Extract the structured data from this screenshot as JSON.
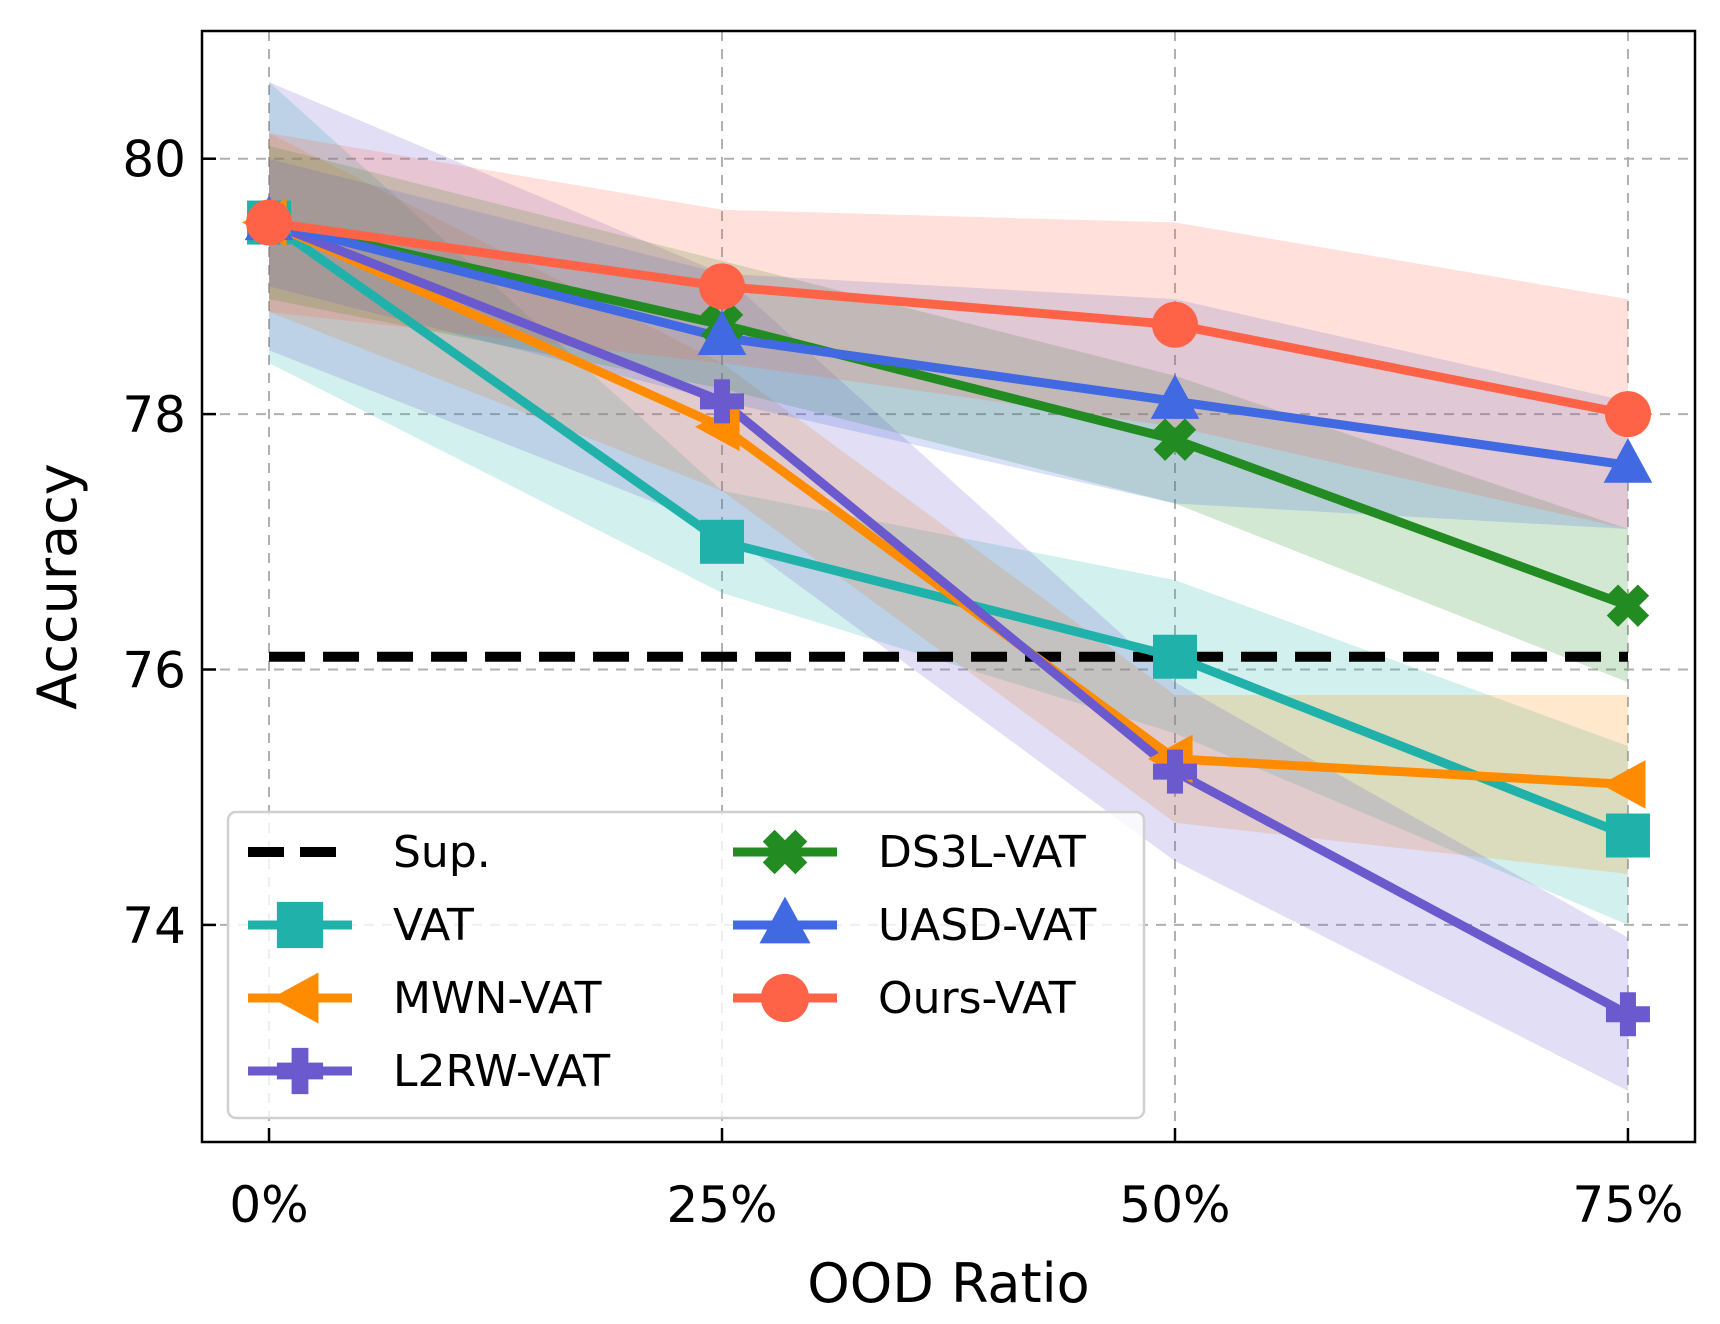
{
  "chart_data": {
    "type": "line",
    "title": "",
    "xlabel": "OOD Ratio",
    "ylabel": "Accuracy",
    "categories": [
      "0%",
      "25%",
      "50%",
      "75%"
    ],
    "x": [
      0,
      25,
      50,
      75
    ],
    "xlim": [
      -3.7,
      78.7
    ],
    "ylim": [
      72.3,
      81.0
    ],
    "yticks": [
      74,
      76,
      78,
      80
    ],
    "ytick_labels": [
      "74",
      "76",
      "78",
      "80"
    ],
    "grid": true,
    "legend_position": "lower-left",
    "legend_columns": 2,
    "series": [
      {
        "name": "Sup.",
        "style": "dashed",
        "marker": "none",
        "color": "#000000",
        "values": [
          76.1,
          76.1,
          76.1,
          76.1
        ]
      },
      {
        "name": "VAT",
        "style": "solid",
        "marker": "square",
        "color": "#20b2aa",
        "values": [
          79.5,
          77.0,
          76.1,
          74.7
        ],
        "band_lower": [
          78.4,
          76.6,
          75.5,
          74.0
        ],
        "band_upper": [
          80.6,
          77.4,
          76.7,
          75.4
        ]
      },
      {
        "name": "MWN-VAT",
        "style": "solid",
        "marker": "triangle-left",
        "color": "#ff8c00",
        "values": [
          79.5,
          77.9,
          75.3,
          75.1
        ],
        "band_lower": [
          78.8,
          77.4,
          74.8,
          74.4
        ],
        "band_upper": [
          80.2,
          78.4,
          75.8,
          75.8
        ]
      },
      {
        "name": "L2RW-VAT",
        "style": "solid",
        "marker": "plus",
        "color": "#6a5acd",
        "values": [
          79.5,
          78.1,
          75.2,
          73.3
        ],
        "band_lower": [
          78.5,
          77.1,
          74.5,
          72.7
        ],
        "band_upper": [
          80.6,
          79.1,
          75.9,
          73.9
        ]
      },
      {
        "name": "DS3L-VAT",
        "style": "solid",
        "marker": "x-filled",
        "color": "#228b22",
        "values": [
          79.5,
          78.7,
          77.8,
          76.5
        ],
        "band_lower": [
          78.9,
          78.2,
          77.3,
          75.9
        ],
        "band_upper": [
          80.1,
          79.2,
          78.3,
          77.1
        ]
      },
      {
        "name": "UASD-VAT",
        "style": "solid",
        "marker": "triangle-up",
        "color": "#4169e1",
        "values": [
          79.5,
          78.6,
          78.1,
          77.6
        ],
        "band_lower": [
          79.0,
          78.1,
          77.3,
          77.1
        ],
        "band_upper": [
          80.0,
          79.1,
          78.9,
          78.1
        ]
      },
      {
        "name": "Ours-VAT",
        "style": "solid",
        "marker": "circle",
        "color": "#ff6347",
        "values": [
          79.5,
          79.0,
          78.7,
          78.0
        ],
        "band_lower": [
          78.8,
          78.4,
          77.9,
          77.1
        ],
        "band_upper": [
          80.2,
          79.6,
          79.5,
          78.9
        ]
      }
    ]
  }
}
